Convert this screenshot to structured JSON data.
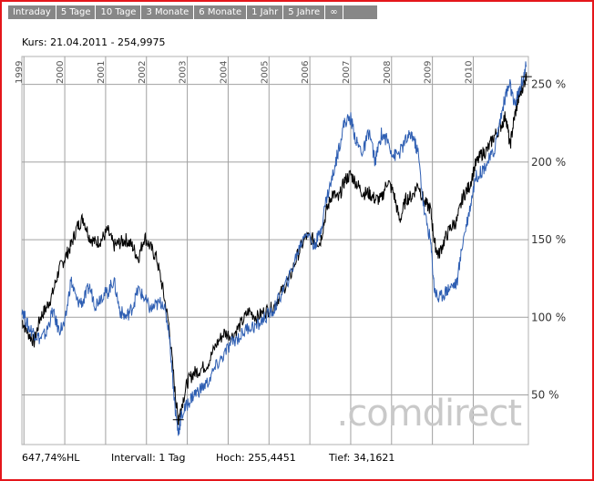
{
  "tabs": [
    {
      "label": "Intraday"
    },
    {
      "label": "5 Tage"
    },
    {
      "label": "10 Tage"
    },
    {
      "label": "3 Monate"
    },
    {
      "label": "6 Monate"
    },
    {
      "label": "1 Jahr"
    },
    {
      "label": "5 Jahre"
    },
    {
      "label": "∞"
    }
  ],
  "header": {
    "kurs": "Kurs: 21.04.2011 - 254,9975"
  },
  "footer": {
    "hl": "647,74%HL",
    "intervall": "Intervall: 1 Tag",
    "hoch": "Hoch: 255,4451",
    "tief": "Tief: 34,1621"
  },
  "watermark": ".comdirect",
  "colors": {
    "frame": "#e4161b",
    "tab_bg": "#878787",
    "series_black": "#000000",
    "series_blue": "#2f5fb3",
    "grid": "#a0a0a0"
  },
  "chart_data": {
    "type": "line",
    "x_ticks": [
      "1999",
      "2000",
      "2001",
      "2002",
      "2003",
      "2004",
      "2005",
      "2006",
      "2007",
      "2008",
      "2009",
      "2010"
    ],
    "y_ticks": [
      "50 %",
      "100 %",
      "150 %",
      "200 %",
      "250 %"
    ],
    "y_tick_values": [
      50,
      100,
      150,
      200,
      250
    ],
    "ylim": [
      18,
      268
    ],
    "xlim": [
      1998.95,
      2011.35
    ],
    "grid": true,
    "series": [
      {
        "color": "#000000",
        "points": [
          [
            1998.95,
            98
          ],
          [
            1999.1,
            90
          ],
          [
            1999.25,
            84
          ],
          [
            1999.4,
            100
          ],
          [
            1999.55,
            106
          ],
          [
            1999.7,
            115
          ],
          [
            1999.85,
            130
          ],
          [
            2000.0,
            138
          ],
          [
            2000.15,
            146
          ],
          [
            2000.3,
            158
          ],
          [
            2000.45,
            164
          ],
          [
            2000.6,
            152
          ],
          [
            2000.75,
            148
          ],
          [
            2000.9,
            150
          ],
          [
            2001.05,
            156
          ],
          [
            2001.2,
            146
          ],
          [
            2001.35,
            148
          ],
          [
            2001.5,
            150
          ],
          [
            2001.65,
            146
          ],
          [
            2001.8,
            138
          ],
          [
            2001.95,
            152
          ],
          [
            2002.1,
            145
          ],
          [
            2002.25,
            138
          ],
          [
            2002.4,
            118
          ],
          [
            2002.55,
            95
          ],
          [
            2002.7,
            52
          ],
          [
            2002.78,
            33
          ],
          [
            2002.85,
            42
          ],
          [
            2003.0,
            58
          ],
          [
            2003.15,
            64
          ],
          [
            2003.3,
            66
          ],
          [
            2003.5,
            70
          ],
          [
            2003.7,
            82
          ],
          [
            2003.9,
            90
          ],
          [
            2004.1,
            88
          ],
          [
            2004.3,
            95
          ],
          [
            2004.5,
            104
          ],
          [
            2004.7,
            100
          ],
          [
            2004.9,
            104
          ],
          [
            2005.1,
            106
          ],
          [
            2005.3,
            116
          ],
          [
            2005.5,
            125
          ],
          [
            2005.7,
            140
          ],
          [
            2005.9,
            152
          ],
          [
            2006.1,
            150
          ],
          [
            2006.25,
            148
          ],
          [
            2006.4,
            168
          ],
          [
            2006.55,
            180
          ],
          [
            2006.7,
            176
          ],
          [
            2006.85,
            188
          ],
          [
            2007.0,
            192
          ],
          [
            2007.15,
            186
          ],
          [
            2007.3,
            180
          ],
          [
            2007.45,
            180
          ],
          [
            2007.6,
            176
          ],
          [
            2007.75,
            176
          ],
          [
            2007.9,
            188
          ],
          [
            2008.05,
            180
          ],
          [
            2008.2,
            162
          ],
          [
            2008.35,
            176
          ],
          [
            2008.5,
            178
          ],
          [
            2008.65,
            186
          ],
          [
            2008.8,
            174
          ],
          [
            2008.95,
            170
          ],
          [
            2009.05,
            148
          ],
          [
            2009.15,
            140
          ],
          [
            2009.3,
            150
          ],
          [
            2009.45,
            158
          ],
          [
            2009.6,
            162
          ],
          [
            2009.75,
            178
          ],
          [
            2009.9,
            184
          ],
          [
            2010.05,
            198
          ],
          [
            2010.2,
            205
          ],
          [
            2010.35,
            208
          ],
          [
            2010.5,
            216
          ],
          [
            2010.65,
            222
          ],
          [
            2010.8,
            230
          ],
          [
            2010.9,
            210
          ],
          [
            2011.0,
            228
          ],
          [
            2011.1,
            240
          ],
          [
            2011.2,
            248
          ],
          [
            2011.3,
            255
          ]
        ]
      },
      {
        "color": "#2f5fb3",
        "points": [
          [
            1998.95,
            106
          ],
          [
            1999.1,
            94
          ],
          [
            1999.25,
            90
          ],
          [
            1999.4,
            86
          ],
          [
            1999.55,
            90
          ],
          [
            1999.7,
            104
          ],
          [
            1999.85,
            92
          ],
          [
            2000.0,
            95
          ],
          [
            2000.15,
            124
          ],
          [
            2000.3,
            110
          ],
          [
            2000.45,
            110
          ],
          [
            2000.6,
            120
          ],
          [
            2000.75,
            108
          ],
          [
            2000.9,
            114
          ],
          [
            2001.05,
            116
          ],
          [
            2001.2,
            124
          ],
          [
            2001.35,
            104
          ],
          [
            2001.5,
            100
          ],
          [
            2001.65,
            106
          ],
          [
            2001.8,
            118
          ],
          [
            2001.95,
            112
          ],
          [
            2002.1,
            105
          ],
          [
            2002.25,
            108
          ],
          [
            2002.4,
            110
          ],
          [
            2002.55,
            92
          ],
          [
            2002.7,
            42
          ],
          [
            2002.78,
            25
          ],
          [
            2002.85,
            36
          ],
          [
            2003.0,
            44
          ],
          [
            2003.15,
            50
          ],
          [
            2003.3,
            53
          ],
          [
            2003.5,
            58
          ],
          [
            2003.7,
            68
          ],
          [
            2003.9,
            76
          ],
          [
            2004.1,
            84
          ],
          [
            2004.3,
            88
          ],
          [
            2004.5,
            94
          ],
          [
            2004.7,
            94
          ],
          [
            2004.9,
            100
          ],
          [
            2005.1,
            104
          ],
          [
            2005.3,
            115
          ],
          [
            2005.5,
            126
          ],
          [
            2005.7,
            142
          ],
          [
            2005.9,
            156
          ],
          [
            2006.1,
            146
          ],
          [
            2006.25,
            154
          ],
          [
            2006.4,
            176
          ],
          [
            2006.55,
            190
          ],
          [
            2006.7,
            208
          ],
          [
            2006.85,
            226
          ],
          [
            2007.0,
            228
          ],
          [
            2007.15,
            212
          ],
          [
            2007.3,
            206
          ],
          [
            2007.45,
            220
          ],
          [
            2007.6,
            200
          ],
          [
            2007.75,
            218
          ],
          [
            2007.9,
            214
          ],
          [
            2008.05,
            204
          ],
          [
            2008.2,
            206
          ],
          [
            2008.35,
            214
          ],
          [
            2008.5,
            218
          ],
          [
            2008.65,
            206
          ],
          [
            2008.8,
            168
          ],
          [
            2008.95,
            150
          ],
          [
            2009.05,
            118
          ],
          [
            2009.15,
            112
          ],
          [
            2009.3,
            116
          ],
          [
            2009.45,
            120
          ],
          [
            2009.6,
            122
          ],
          [
            2009.75,
            150
          ],
          [
            2009.9,
            168
          ],
          [
            2010.05,
            190
          ],
          [
            2010.2,
            194
          ],
          [
            2010.35,
            200
          ],
          [
            2010.5,
            206
          ],
          [
            2010.65,
            226
          ],
          [
            2010.8,
            244
          ],
          [
            2010.9,
            250
          ],
          [
            2011.0,
            236
          ],
          [
            2011.1,
            244
          ],
          [
            2011.2,
            252
          ],
          [
            2011.3,
            262
          ]
        ]
      }
    ]
  }
}
